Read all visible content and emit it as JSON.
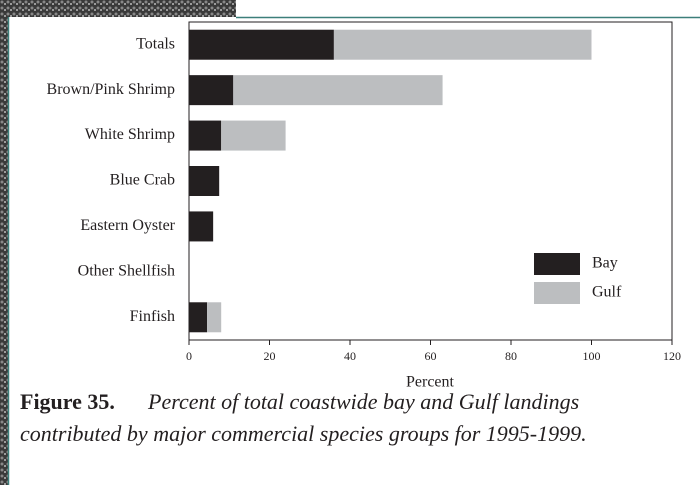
{
  "chart_data": {
    "type": "stacked-barh",
    "categories": [
      "Totals",
      "Brown/Pink Shrimp",
      "White Shrimp",
      "Blue Crab",
      "Eastern Oyster",
      "Other Shellfish",
      "Finfish"
    ],
    "series": [
      {
        "name": "Bay",
        "color": "#231f20",
        "values": [
          36,
          11,
          8,
          7.5,
          6,
          0,
          4.5
        ]
      },
      {
        "name": "Gulf",
        "color": "#bcbec0",
        "values": [
          64,
          52,
          16,
          0,
          0,
          0,
          3.5
        ]
      }
    ],
    "xlim": [
      0,
      120
    ],
    "xticks": [
      0,
      20,
      40,
      60,
      80,
      100,
      120
    ],
    "xlabel": "Percent",
    "legend": "lower-right",
    "figure_label": "Figure 35.",
    "caption_lines": [
      "Percent of total coastwide bay and Gulf landings",
      "contributed by major commercial species groups for 1995-1999."
    ]
  }
}
